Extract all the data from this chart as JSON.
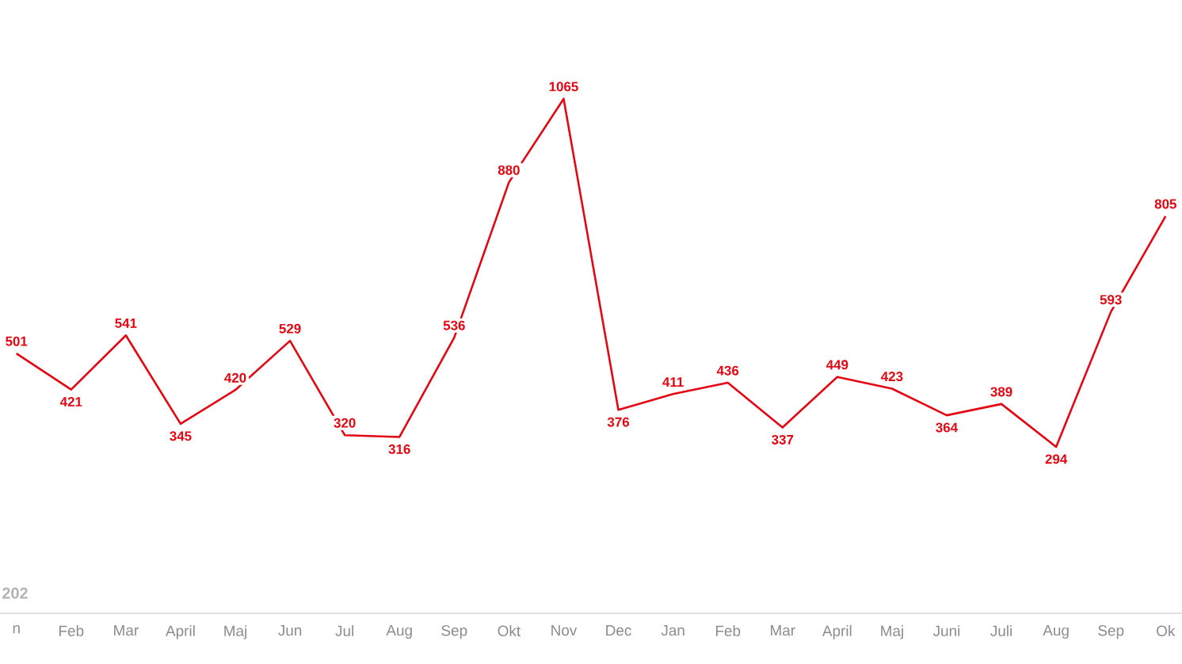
{
  "chart_data": {
    "type": "line",
    "categories": [
      "n",
      "Feb",
      "Mar",
      "April",
      "Maj",
      "Jun",
      "Jul",
      "Aug",
      "Sep",
      "Okt",
      "Nov",
      "Dec",
      "Jan",
      "Feb",
      "Mar",
      "April",
      "Maj",
      "Juni",
      "Juli",
      "Aug",
      "Sep",
      "Ok"
    ],
    "values": [
      501,
      421,
      541,
      345,
      420,
      529,
      320,
      316,
      536,
      880,
      1065,
      376,
      411,
      436,
      337,
      449,
      423,
      364,
      389,
      294,
      593,
      805
    ],
    "data_labels": true,
    "color": "#e30613",
    "line_style": "solid",
    "annotations": [
      "202"
    ]
  }
}
